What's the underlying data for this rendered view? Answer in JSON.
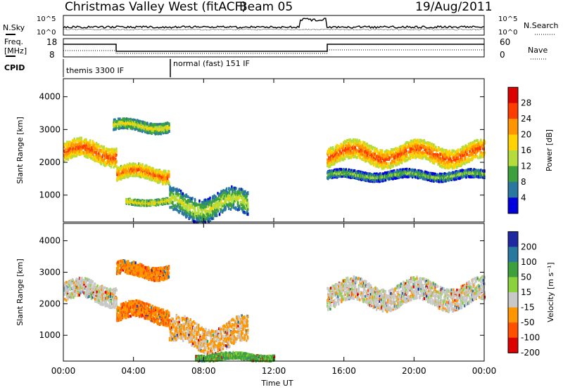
{
  "header": {
    "station": "Christmas Valley West (fitACF)",
    "beam": "Beam 05",
    "date": "19/Aug/2011"
  },
  "strip_labels": {
    "nsky": "N.Sky",
    "nsearch": "N.Search",
    "freq": "Freq.",
    "mhz": "[MHz]",
    "nave": "Nave",
    "cpid": "CPID",
    "noise_ticks_left": [
      "10^5",
      "10^0"
    ],
    "noise_ticks_right": [
      "10^5",
      "10^0"
    ],
    "freq_ticks": [
      "18",
      "8"
    ],
    "nave_ticks": [
      "60",
      "0"
    ]
  },
  "cpid_modes": [
    {
      "label": "themis 3300 IF",
      "start_hour": 0
    },
    {
      "label": "normal (fast) 151 IF",
      "start_hour": 6
    }
  ],
  "axes": {
    "xlabel": "Time UT",
    "ylabel_top": "Slant Range [km]",
    "ylabel_bottom": "Slant Range [km]",
    "power_colorbar_label": "Power [dB]",
    "velocity_colorbar_label": "Velocity [m s⁻¹]"
  },
  "chart_data": [
    {
      "type": "heatmap",
      "panel": "power",
      "x_ticks": [
        "00:00",
        "04:00",
        "08:00",
        "12:00",
        "16:00",
        "20:00",
        "00:00"
      ],
      "x_range_hours": [
        0,
        24
      ],
      "y_ticks": [
        "1000",
        "2000",
        "3000",
        "4000"
      ],
      "y_tick_values": [
        1000,
        2000,
        3000,
        4000
      ],
      "ylim": [
        180,
        4550
      ],
      "colorbar_ticks": [
        "28",
        "24",
        "20",
        "16",
        "12",
        "8",
        "4"
      ],
      "colorbar_values": [
        28,
        24,
        20,
        16,
        12,
        8,
        4
      ],
      "colorbar_colors": [
        "#dc0000",
        "#ff3c00",
        "#ff9600",
        "#ffd200",
        "#b4dc3c",
        "#3ca03c",
        "#2878a0",
        "#0000dc"
      ],
      "bands": [
        {
          "t0": 0.0,
          "t1": 3.0,
          "r_mid": 2300,
          "r_half": 280,
          "core": 26
        },
        {
          "t0": 3.0,
          "t1": 6.0,
          "r_mid": 1650,
          "r_half": 200,
          "core": 25
        },
        {
          "t0": 2.8,
          "t1": 6.0,
          "r_mid": 3100,
          "r_half": 150,
          "core": 18
        },
        {
          "t0": 3.5,
          "t1": 6.0,
          "r_mid": 800,
          "r_half": 80,
          "core": 20
        },
        {
          "t0": 6.0,
          "t1": 10.5,
          "r_mid": 700,
          "r_half": 350,
          "core": 16
        },
        {
          "t0": 15.0,
          "t1": 24.0,
          "r_mid": 2250,
          "r_half": 280,
          "core": 26
        },
        {
          "t0": 15.0,
          "t1": 24.0,
          "r_mid": 1600,
          "r_half": 120,
          "core": 14
        }
      ]
    },
    {
      "type": "heatmap",
      "panel": "velocity",
      "x_ticks": [
        "00:00",
        "04:00",
        "08:00",
        "12:00",
        "16:00",
        "20:00",
        "00:00"
      ],
      "x_range_hours": [
        0,
        24
      ],
      "y_ticks": [
        "1000",
        "2000",
        "3000",
        "4000"
      ],
      "y_tick_values": [
        1000,
        2000,
        3000,
        4000
      ],
      "ylim": [
        180,
        4550
      ],
      "colorbar_ticks": [
        "200",
        "100",
        "50",
        "15",
        "-15",
        "-50",
        "-100",
        "-200"
      ],
      "colorbar_values": [
        200,
        100,
        50,
        15,
        -15,
        -50,
        -100,
        -200
      ],
      "colorbar_colors": [
        "#1e28a0",
        "#2878a0",
        "#3ca03c",
        "#8cd23c",
        "#c8c8c8",
        "#ff9600",
        "#ff5000",
        "#dc0000"
      ],
      "bands": [
        {
          "t0": 0.0,
          "t1": 3.0,
          "r_mid": 2350,
          "r_half": 300,
          "v": 0
        },
        {
          "t0": 3.0,
          "t1": 6.0,
          "r_mid": 1700,
          "r_half": 250,
          "v": -45
        },
        {
          "t0": 3.0,
          "t1": 6.0,
          "r_mid": 3050,
          "r_half": 200,
          "v": -40
        },
        {
          "t0": 6.0,
          "t1": 10.5,
          "r_mid": 1000,
          "r_half": 400,
          "v": -20
        },
        {
          "t0": 7.5,
          "t1": 12.0,
          "r_mid": 300,
          "r_half": 100,
          "v": 60
        },
        {
          "t0": 15.0,
          "t1": 24.0,
          "r_mid": 2300,
          "r_half": 350,
          "v": 0
        }
      ]
    }
  ]
}
